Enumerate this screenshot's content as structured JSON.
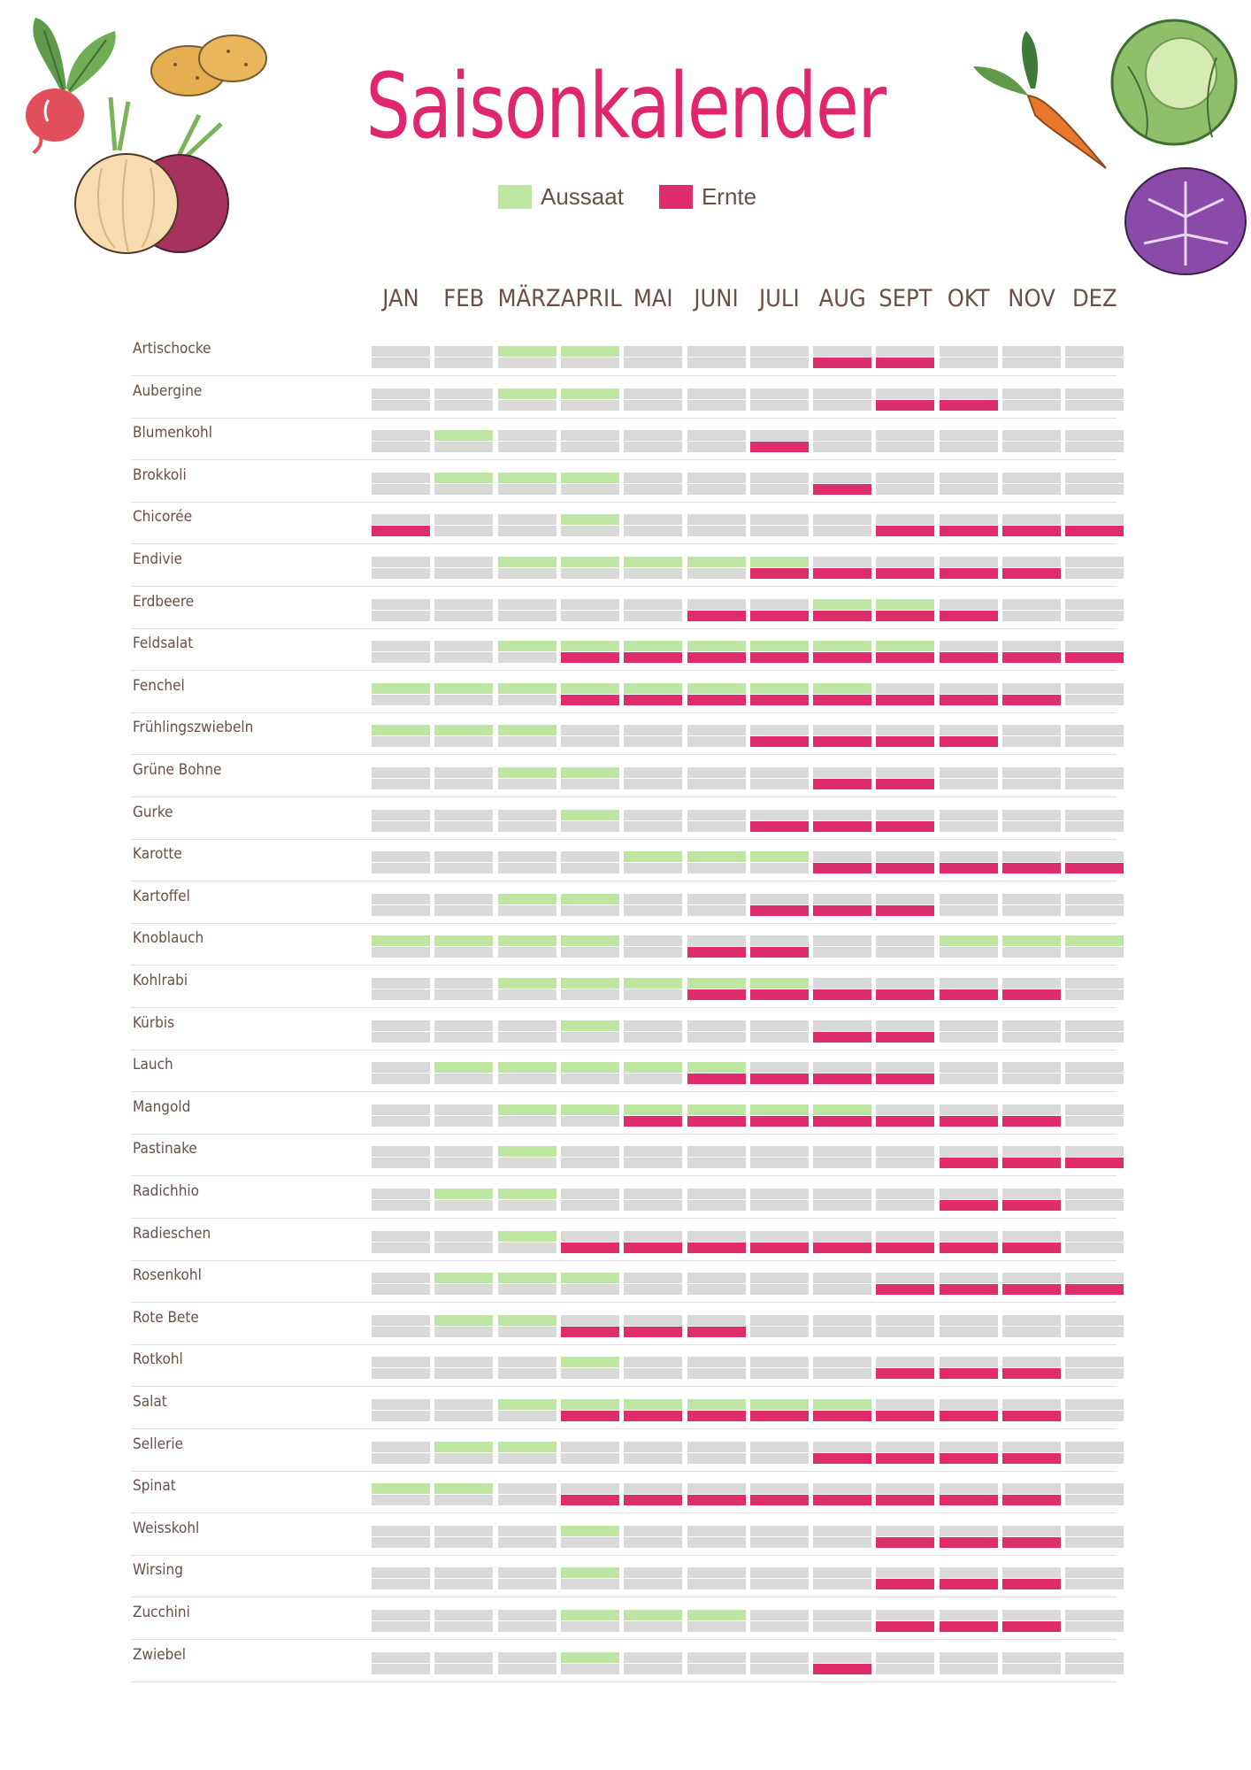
{
  "title": "Saisonkalender",
  "legend": [
    {
      "label": "Aussaat",
      "color": "#bfe5a3"
    },
    {
      "label": "Ernte",
      "color": "#de2c6c"
    }
  ],
  "colors": {
    "empty": "#d9d9d9",
    "aussaat": "#bfe5a3",
    "ernte": "#de2c6c",
    "title": "#e0266e",
    "text": "#6b4e45"
  },
  "illustrations": [
    "radish-icon",
    "potato-icon",
    "onion-icon",
    "carrot-icon",
    "cabbage-icon",
    "red-cabbage-icon"
  ],
  "chart_data": {
    "type": "heatmap",
    "title": "Saisonkalender",
    "months": [
      "JAN",
      "FEB",
      "MÄRZ",
      "APRIL",
      "MAI",
      "JUNI",
      "JULI",
      "AUG",
      "SEPT",
      "OKT",
      "NOV",
      "DEZ"
    ],
    "series": [
      "Aussaat",
      "Ernte"
    ],
    "rows": [
      {
        "name": "Artischocke",
        "aussaat": [
          3,
          4
        ],
        "ernte": [
          8,
          9
        ]
      },
      {
        "name": "Aubergine",
        "aussaat": [
          3,
          4
        ],
        "ernte": [
          9,
          10
        ]
      },
      {
        "name": "Blumenkohl",
        "aussaat": [
          2
        ],
        "ernte": [
          7
        ]
      },
      {
        "name": "Brokkoli",
        "aussaat": [
          2,
          3,
          4
        ],
        "ernte": [
          8
        ]
      },
      {
        "name": "Chicorée",
        "aussaat": [
          4
        ],
        "ernte": [
          1,
          9,
          10,
          11,
          12
        ]
      },
      {
        "name": "Endivie",
        "aussaat": [
          3,
          4,
          5,
          6,
          7
        ],
        "ernte": [
          7,
          8,
          9,
          10,
          11
        ]
      },
      {
        "name": "Erdbeere",
        "aussaat": [
          8,
          9
        ],
        "ernte": [
          6,
          7,
          8,
          9,
          10
        ]
      },
      {
        "name": "Feldsalat",
        "aussaat": [
          3,
          4,
          5,
          6,
          7,
          8,
          9
        ],
        "ernte": [
          4,
          5,
          6,
          7,
          8,
          9,
          10,
          11,
          12
        ]
      },
      {
        "name": "Fenchel",
        "aussaat": [
          1,
          2,
          3,
          4,
          5,
          6,
          7,
          8
        ],
        "ernte": [
          4,
          5,
          6,
          7,
          8,
          9,
          10,
          11
        ]
      },
      {
        "name": "Frühlingszwiebeln",
        "aussaat": [
          1,
          2,
          3
        ],
        "ernte": [
          7,
          8,
          9,
          10
        ]
      },
      {
        "name": "Grüne Bohne",
        "aussaat": [
          3,
          4
        ],
        "ernte": [
          8,
          9
        ]
      },
      {
        "name": "Gurke",
        "aussaat": [
          4
        ],
        "ernte": [
          7,
          8,
          9
        ]
      },
      {
        "name": "Karotte",
        "aussaat": [
          5,
          6,
          7
        ],
        "ernte": [
          8,
          9,
          10,
          11,
          12
        ]
      },
      {
        "name": "Kartoffel",
        "aussaat": [
          3,
          4
        ],
        "ernte": [
          7,
          8,
          9
        ]
      },
      {
        "name": "Knoblauch",
        "aussaat": [
          1,
          2,
          3,
          4,
          10,
          11,
          12
        ],
        "ernte": [
          6,
          7
        ]
      },
      {
        "name": "Kohlrabi",
        "aussaat": [
          3,
          4,
          5,
          6,
          7
        ],
        "ernte": [
          6,
          7,
          8,
          9,
          10,
          11
        ]
      },
      {
        "name": "Kürbis",
        "aussaat": [
          4
        ],
        "ernte": [
          8,
          9
        ]
      },
      {
        "name": "Lauch",
        "aussaat": [
          2,
          3,
          4,
          5,
          6
        ],
        "ernte": [
          6,
          7,
          8,
          9
        ]
      },
      {
        "name": "Mangold",
        "aussaat": [
          3,
          4,
          5,
          6,
          7,
          8
        ],
        "ernte": [
          5,
          6,
          7,
          8,
          9,
          10,
          11
        ]
      },
      {
        "name": "Pastinake",
        "aussaat": [
          3
        ],
        "ernte": [
          10,
          11,
          12
        ]
      },
      {
        "name": "Radichhio",
        "aussaat": [
          2,
          3
        ],
        "ernte": [
          10,
          11
        ]
      },
      {
        "name": "Radieschen",
        "aussaat": [
          3
        ],
        "ernte": [
          4,
          5,
          6,
          7,
          8,
          9,
          10,
          11
        ]
      },
      {
        "name": "Rosenkohl",
        "aussaat": [
          2,
          3,
          4
        ],
        "ernte": [
          9,
          10,
          11,
          12
        ]
      },
      {
        "name": "Rote Bete",
        "aussaat": [
          2,
          3
        ],
        "ernte": [
          4,
          5,
          6
        ]
      },
      {
        "name": "Rotkohl",
        "aussaat": [
          4
        ],
        "ernte": [
          9,
          10,
          11
        ]
      },
      {
        "name": "Salat",
        "aussaat": [
          3,
          4,
          5,
          6,
          7,
          8
        ],
        "ernte": [
          4,
          5,
          6,
          7,
          8,
          9,
          10,
          11
        ]
      },
      {
        "name": "Sellerie",
        "aussaat": [
          2,
          3
        ],
        "ernte": [
          8,
          9,
          10,
          11
        ]
      },
      {
        "name": "Spinat",
        "aussaat": [
          1,
          2
        ],
        "ernte": [
          4,
          5,
          6,
          7,
          8,
          9,
          10,
          11
        ]
      },
      {
        "name": "Weisskohl",
        "aussaat": [
          4
        ],
        "ernte": [
          9,
          10,
          11
        ]
      },
      {
        "name": "Wirsing",
        "aussaat": [
          4
        ],
        "ernte": [
          9,
          10,
          11
        ]
      },
      {
        "name": "Zucchini",
        "aussaat": [
          4,
          5,
          6
        ],
        "ernte": [
          9,
          10,
          11
        ]
      },
      {
        "name": "Zwiebel",
        "aussaat": [
          4
        ],
        "ernte": [
          8
        ]
      }
    ]
  }
}
